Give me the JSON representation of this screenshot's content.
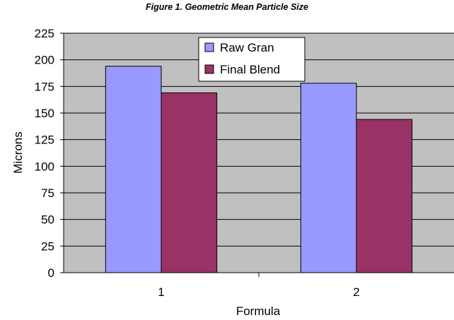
{
  "chart_data": {
    "type": "bar",
    "title": "Figure 1. Geometric Mean Particle Size",
    "xlabel": "Formula",
    "ylabel": "Microns",
    "categories": [
      "1",
      "2"
    ],
    "series": [
      {
        "name": "Raw Gran",
        "values": [
          194,
          178
        ],
        "color": "#9999ff"
      },
      {
        "name": "Final Blend",
        "values": [
          169,
          144
        ],
        "color": "#993366"
      }
    ],
    "ylim": [
      0,
      225
    ],
    "yticks": [
      0,
      25,
      50,
      75,
      100,
      125,
      150,
      175,
      200,
      225
    ],
    "grid": true,
    "legend_position": "top-center",
    "plot_background": "#c0c0c0"
  }
}
